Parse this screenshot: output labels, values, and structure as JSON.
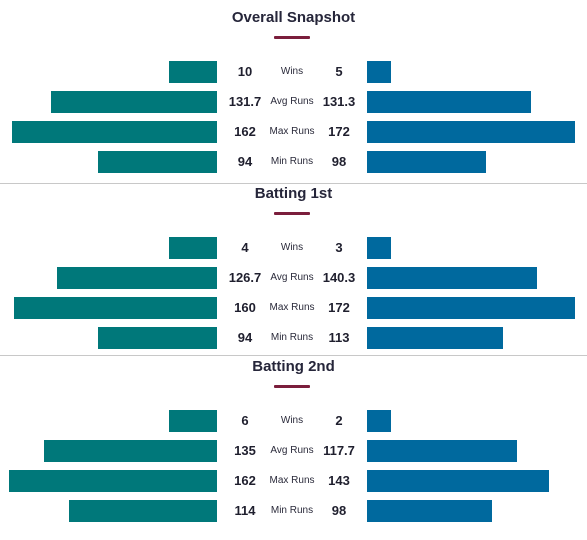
{
  "colors": {
    "left_bar": "#00787a",
    "right_bar": "#00699e",
    "title_accent": "#7b1e3c"
  },
  "sections": [
    {
      "title": "Overall Snapshot",
      "rows": [
        {
          "label": "Wins",
          "left": "10",
          "right": "5",
          "left_frac": 0.23,
          "right_frac": 0.115
        },
        {
          "label": "Avg Runs",
          "left": "131.7",
          "right": "131.3",
          "left_frac": 0.8,
          "right_frac": 0.79
        },
        {
          "label": "Max Runs",
          "left": "162",
          "right": "172",
          "left_frac": 0.985,
          "right_frac": 1.0
        },
        {
          "label": "Min Runs",
          "left": "94",
          "right": "98",
          "left_frac": 0.57,
          "right_frac": 0.57
        }
      ]
    },
    {
      "title": "Batting 1st",
      "rows": [
        {
          "label": "Wins",
          "left": "4",
          "right": "3",
          "left_frac": 0.23,
          "right_frac": 0.115
        },
        {
          "label": "Avg Runs",
          "left": "126.7",
          "right": "140.3",
          "left_frac": 0.77,
          "right_frac": 0.815
        },
        {
          "label": "Max Runs",
          "left": "160",
          "right": "172",
          "left_frac": 0.975,
          "right_frac": 1.0
        },
        {
          "label": "Min Runs",
          "left": "94",
          "right": "113",
          "left_frac": 0.57,
          "right_frac": 0.655
        }
      ]
    },
    {
      "title": "Batting 2nd",
      "rows": [
        {
          "label": "Wins",
          "left": "6",
          "right": "2",
          "left_frac": 0.23,
          "right_frac": 0.115
        },
        {
          "label": "Avg Runs",
          "left": "135",
          "right": "117.7",
          "left_frac": 0.83,
          "right_frac": 0.72
        },
        {
          "label": "Max Runs",
          "left": "162",
          "right": "143",
          "left_frac": 1.0,
          "right_frac": 0.875
        },
        {
          "label": "Min Runs",
          "left": "114",
          "right": "98",
          "left_frac": 0.71,
          "right_frac": 0.6
        }
      ]
    }
  ]
}
